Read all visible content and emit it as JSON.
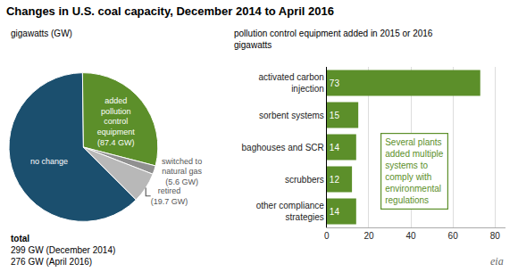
{
  "chart_data": [
    {
      "type": "pie",
      "title": "Changes in U.S. coal capacity, December 2014 to April 2016",
      "subtitle": "gigawatts (GW)",
      "categories": [
        "no change",
        "added\npollution\ncontrol\nequipment\n(87.4 GW)",
        "switched to\nnatural gas\n(5.6 GW)",
        "retired\n(19.7 GW)"
      ],
      "values": [
        186.3,
        87.4,
        5.6,
        19.7
      ],
      "colors": [
        "#1b4f6e",
        "#5c8f2a",
        "#909090",
        "#b8b8b8"
      ],
      "annotations": [
        "total",
        "299 GW (December 2014)\n276 GW (April 2016)"
      ]
    },
    {
      "type": "bar",
      "orientation": "horizontal",
      "subtitle": "pollution control equipment added in 2015 or 2016\ngigawatts",
      "categories": [
        "activated carbon\ninjection",
        "sorbent systems",
        "baghouses and SCR",
        "scrubbers",
        "other compliance\nstrategies"
      ],
      "values": [
        73,
        15,
        14,
        12,
        14
      ],
      "color": "#5c8f2a",
      "xlim": [
        0,
        85
      ],
      "xticks": [
        0,
        20,
        40,
        60,
        80
      ],
      "grid": true,
      "data_labels": true,
      "annotations": [
        "Several plants\nadded multiple\nsystems to\ncomply with\nenvironmental\nregulations",
        "eia"
      ]
    }
  ]
}
